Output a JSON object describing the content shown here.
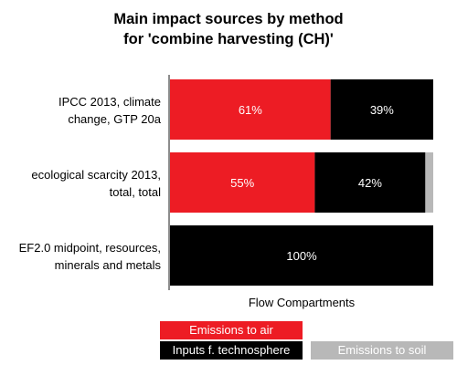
{
  "chart_data": {
    "type": "bar",
    "orientation": "horizontal",
    "stacked": true,
    "title_lines": [
      "Main impact sources by method",
      "for 'combine harvesting (CH)'"
    ],
    "xlabel": "Flow Compartments",
    "ylabel": "",
    "xlim": [
      0,
      100
    ],
    "grid": false,
    "legend_position": "bottom",
    "categories": [
      {
        "lines": [
          "IPCC 2013, climate",
          "change, GTP 20a"
        ]
      },
      {
        "lines": [
          "ecological scarcity 2013,",
          "total, total"
        ]
      },
      {
        "lines": [
          "EF2.0 midpoint, resources,",
          "minerals and metals"
        ]
      }
    ],
    "series": [
      {
        "name": "Emissions to air",
        "color": "#ed1c24",
        "values": [
          61,
          55,
          0
        ],
        "labels": [
          "61%",
          "55%",
          ""
        ]
      },
      {
        "name": "Inputs f. technosphere",
        "color": "#000000",
        "values": [
          39,
          42,
          100
        ],
        "labels": [
          "39%",
          "42%",
          "100%"
        ]
      },
      {
        "name": "Emissions to soil",
        "color": "#b8b8b8",
        "values": [
          0,
          3,
          0
        ],
        "labels": [
          "",
          "",
          ""
        ]
      }
    ]
  }
}
